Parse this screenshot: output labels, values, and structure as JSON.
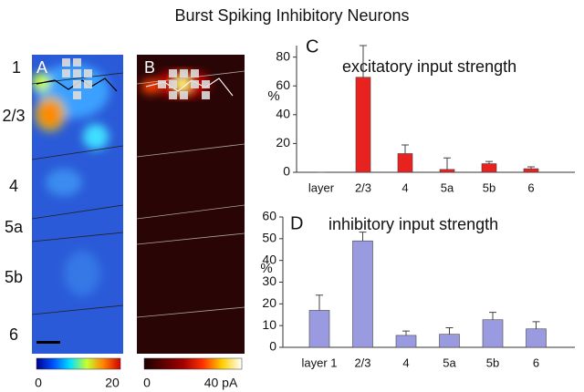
{
  "title": "Burst Spiking Inhibitory Neurons",
  "panels": {
    "a": "A",
    "b": "B"
  },
  "layers": [
    "1",
    "2/3",
    "4",
    "5a",
    "5b",
    "6"
  ],
  "colorbars": [
    {
      "min_label": "0",
      "max_label": "20"
    },
    {
      "min_label": "0",
      "max_label": "40 pA"
    }
  ],
  "chart_data": [
    {
      "type": "bar",
      "panel": "C",
      "title": "excitatory input strength",
      "y_label": "%",
      "categories": [
        "layer",
        "2/3",
        "4",
        "5a",
        "5b",
        "6"
      ],
      "values": [
        0,
        66,
        13,
        2,
        6,
        2.5
      ],
      "errors": [
        0,
        22,
        6,
        8,
        1.5,
        1.3
      ],
      "color": "#e8231f",
      "ylim": [
        0,
        88
      ],
      "yticks": [
        0,
        20,
        40,
        60,
        80
      ]
    },
    {
      "type": "bar",
      "panel": "D",
      "title": "inhibitory input strength",
      "y_label": "%",
      "categories": [
        "layer 1",
        "2/3",
        "4",
        "5a",
        "5b",
        "6"
      ],
      "values": [
        17,
        49,
        5.5,
        6,
        12.7,
        8.5
      ],
      "errors": [
        7,
        4,
        2,
        3,
        3.4,
        3.3
      ],
      "color": "#9a9ae0",
      "ylim": [
        0,
        60
      ],
      "yticks": [
        0,
        10,
        20,
        30,
        40,
        50,
        60
      ]
    }
  ]
}
